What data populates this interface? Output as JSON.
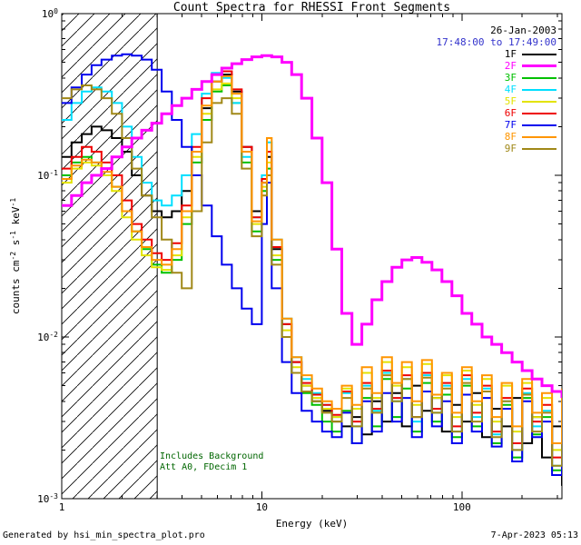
{
  "header": {
    "date": "26-Jan-2003",
    "time_range": "17:48:00 to 17:49:00",
    "date_color": "#000000",
    "time_color": "#3333cc"
  },
  "annotations": {
    "line1": "Includes Background",
    "line2": "Att A0, FDecim 1",
    "color": "#006600"
  },
  "footer": {
    "left": "Generated by hsi_min_spectra_plot.pro",
    "right": "7-Apr-2023 05:13"
  },
  "chart_data": {
    "type": "line",
    "title": "Count Spectra for RHESSI Front Segments",
    "xlabel": "Energy (keV)",
    "ylabel": "counts cm^-2 s^-1 keV^-1",
    "ylabel_parts": [
      {
        "t": "counts cm"
      },
      {
        "t": "-2",
        "sup": true
      },
      {
        "t": " s"
      },
      {
        "t": "-1",
        "sup": true
      },
      {
        "t": " keV"
      },
      {
        "t": "-1",
        "sup": true
      }
    ],
    "xscale": "log",
    "yscale": "log",
    "xlim": [
      1,
      316
    ],
    "ylim": [
      0.001,
      1
    ],
    "x_ticks": [
      {
        "value": 1,
        "label": "1"
      },
      {
        "value": 10,
        "label": "10"
      },
      {
        "value": 100,
        "label": "100"
      }
    ],
    "y_ticks": [
      {
        "value": 1,
        "base": "10",
        "exp": "0"
      },
      {
        "value": 0.1,
        "base": "10",
        "exp": "-1"
      },
      {
        "value": 0.01,
        "base": "10",
        "exp": "-2"
      },
      {
        "value": 0.001,
        "base": "10",
        "exp": "-3"
      }
    ],
    "hatch_region": {
      "x_min": 1,
      "x_max": 3.0
    },
    "legend_position": "top-right",
    "x": [
      1.0,
      1.12,
      1.26,
      1.41,
      1.58,
      1.78,
      2.0,
      2.24,
      2.51,
      2.82,
      3.16,
      3.55,
      3.98,
      4.47,
      5.01,
      5.62,
      6.31,
      7.08,
      7.94,
      8.91,
      10.0,
      10.6,
      11.2,
      12.6,
      14.1,
      15.8,
      17.8,
      20.0,
      22.4,
      25.1,
      28.2,
      31.6,
      35.5,
      39.8,
      44.7,
      50.1,
      56.2,
      63.1,
      70.8,
      79.4,
      89.1,
      100,
      112,
      126,
      141,
      158,
      178,
      200,
      224,
      251,
      282,
      316
    ],
    "series": [
      {
        "name": "1F",
        "color": "#000000",
        "width": 2,
        "zorder": 1,
        "values": [
          0.13,
          0.16,
          0.18,
          0.2,
          0.19,
          0.17,
          0.14,
          0.1,
          0.075,
          0.06,
          0.055,
          0.06,
          0.08,
          0.14,
          0.26,
          0.38,
          0.42,
          0.33,
          0.15,
          0.06,
          0.09,
          0.13,
          0.035,
          0.012,
          0.007,
          0.005,
          0.004,
          0.0035,
          0.003,
          0.0028,
          0.0032,
          0.0025,
          0.004,
          0.003,
          0.0045,
          0.0028,
          0.005,
          0.0035,
          0.0042,
          0.0026,
          0.0038,
          0.003,
          0.0045,
          0.0024,
          0.0036,
          0.0028,
          0.0042,
          0.0022,
          0.0032,
          0.0018,
          0.0028,
          0.0012
        ]
      },
      {
        "name": "2F",
        "color": "#ff00ff",
        "width": 3,
        "zorder": 9,
        "values": [
          0.065,
          0.075,
          0.09,
          0.1,
          0.11,
          0.13,
          0.15,
          0.17,
          0.19,
          0.21,
          0.24,
          0.27,
          0.3,
          0.34,
          0.38,
          0.42,
          0.46,
          0.49,
          0.52,
          0.54,
          0.55,
          0.55,
          0.54,
          0.5,
          0.42,
          0.3,
          0.17,
          0.09,
          0.035,
          0.014,
          0.009,
          0.012,
          0.017,
          0.022,
          0.027,
          0.03,
          0.031,
          0.029,
          0.026,
          0.022,
          0.018,
          0.014,
          0.012,
          0.01,
          0.009,
          0.008,
          0.007,
          0.0062,
          0.0055,
          0.005,
          0.0046,
          0.0042
        ]
      },
      {
        "name": "3F",
        "color": "#00c000",
        "width": 2,
        "zorder": 2,
        "values": [
          0.1,
          0.12,
          0.13,
          0.12,
          0.1,
          0.085,
          0.06,
          0.045,
          0.035,
          0.028,
          0.025,
          0.03,
          0.05,
          0.12,
          0.22,
          0.33,
          0.36,
          0.28,
          0.12,
          0.045,
          0.08,
          0.11,
          0.03,
          0.01,
          0.006,
          0.0045,
          0.0038,
          0.003,
          0.0026,
          0.0035,
          0.0022,
          0.0042,
          0.0028,
          0.0055,
          0.0032,
          0.0048,
          0.0026,
          0.0052,
          0.003,
          0.0044,
          0.0024,
          0.005,
          0.0028,
          0.0046,
          0.0022,
          0.0038,
          0.0018,
          0.0042,
          0.0025,
          0.0032,
          0.0015,
          0.0022
        ]
      },
      {
        "name": "4F",
        "color": "#00dfff",
        "width": 2,
        "zorder": 3,
        "values": [
          0.22,
          0.28,
          0.33,
          0.35,
          0.33,
          0.28,
          0.2,
          0.13,
          0.09,
          0.07,
          0.065,
          0.075,
          0.1,
          0.18,
          0.32,
          0.43,
          0.4,
          0.28,
          0.13,
          0.055,
          0.1,
          0.16,
          0.04,
          0.013,
          0.0075,
          0.0055,
          0.0045,
          0.0038,
          0.0032,
          0.0045,
          0.0028,
          0.005,
          0.0035,
          0.006,
          0.004,
          0.0055,
          0.003,
          0.0058,
          0.0034,
          0.005,
          0.0026,
          0.0055,
          0.0032,
          0.0048,
          0.0025,
          0.004,
          0.002,
          0.0045,
          0.0028,
          0.0035,
          0.0016,
          0.0024
        ]
      },
      {
        "name": "5F",
        "color": "#e3e300",
        "width": 2,
        "zorder": 4,
        "values": [
          0.09,
          0.11,
          0.12,
          0.115,
          0.1,
          0.08,
          0.055,
          0.04,
          0.032,
          0.027,
          0.026,
          0.032,
          0.055,
          0.13,
          0.24,
          0.34,
          0.37,
          0.3,
          0.14,
          0.05,
          0.085,
          0.12,
          0.032,
          0.011,
          0.0065,
          0.005,
          0.0042,
          0.0036,
          0.0032,
          0.0048,
          0.0036,
          0.006,
          0.0042,
          0.007,
          0.005,
          0.0065,
          0.0038,
          0.0068,
          0.0042,
          0.0058,
          0.0032,
          0.0062,
          0.0038,
          0.0055,
          0.003,
          0.005,
          0.0026,
          0.0052,
          0.0032,
          0.0042,
          0.002,
          0.003
        ]
      },
      {
        "name": "6F",
        "color": "#ee0000",
        "width": 2,
        "zorder": 5,
        "values": [
          0.11,
          0.13,
          0.15,
          0.14,
          0.12,
          0.1,
          0.07,
          0.05,
          0.04,
          0.033,
          0.03,
          0.038,
          0.065,
          0.15,
          0.3,
          0.42,
          0.44,
          0.34,
          0.15,
          0.055,
          0.095,
          0.14,
          0.036,
          0.012,
          0.007,
          0.0052,
          0.0044,
          0.0038,
          0.0033,
          0.0046,
          0.003,
          0.0052,
          0.0036,
          0.0062,
          0.0042,
          0.0058,
          0.0032,
          0.006,
          0.0036,
          0.0052,
          0.0028,
          0.0058,
          0.0034,
          0.005,
          0.0026,
          0.0042,
          0.0022,
          0.0048,
          0.003,
          0.0038,
          0.0018,
          0.0026
        ]
      },
      {
        "name": "7F",
        "color": "#0000ee",
        "width": 2,
        "zorder": 6,
        "values": [
          0.28,
          0.35,
          0.42,
          0.48,
          0.52,
          0.55,
          0.56,
          0.55,
          0.52,
          0.45,
          0.33,
          0.22,
          0.15,
          0.1,
          0.065,
          0.042,
          0.028,
          0.02,
          0.015,
          0.012,
          0.05,
          0.09,
          0.02,
          0.007,
          0.0045,
          0.0035,
          0.003,
          0.0026,
          0.0024,
          0.0034,
          0.0022,
          0.004,
          0.0026,
          0.0045,
          0.003,
          0.0042,
          0.0024,
          0.0046,
          0.0028,
          0.004,
          0.0022,
          0.0044,
          0.0026,
          0.0042,
          0.0021,
          0.0036,
          0.0017,
          0.004,
          0.0024,
          0.003,
          0.0014,
          0.002
        ]
      },
      {
        "name": "8F",
        "color": "#ff9500",
        "width": 2,
        "zorder": 8,
        "values": [
          0.095,
          0.115,
          0.125,
          0.12,
          0.105,
          0.085,
          0.06,
          0.045,
          0.036,
          0.03,
          0.028,
          0.035,
          0.06,
          0.14,
          0.27,
          0.38,
          0.41,
          0.32,
          0.14,
          0.052,
          0.09,
          0.17,
          0.04,
          0.013,
          0.0075,
          0.0058,
          0.0048,
          0.004,
          0.0036,
          0.005,
          0.0038,
          0.0065,
          0.0045,
          0.0075,
          0.0052,
          0.007,
          0.004,
          0.0072,
          0.0044,
          0.006,
          0.0034,
          0.0065,
          0.004,
          0.0058,
          0.0032,
          0.0052,
          0.0028,
          0.0055,
          0.0034,
          0.0045,
          0.0022,
          0.0048
        ]
      },
      {
        "name": "9F",
        "color": "#a08818",
        "width": 2,
        "zorder": 7,
        "values": [
          0.3,
          0.34,
          0.36,
          0.34,
          0.3,
          0.24,
          0.17,
          0.11,
          0.075,
          0.055,
          0.04,
          0.025,
          0.02,
          0.06,
          0.16,
          0.28,
          0.3,
          0.24,
          0.11,
          0.042,
          0.075,
          0.1,
          0.028,
          0.01,
          0.006,
          0.0046,
          0.004,
          0.0034,
          0.003,
          0.0042,
          0.0028,
          0.0048,
          0.0034,
          0.0058,
          0.004,
          0.0055,
          0.0032,
          0.0056,
          0.0034,
          0.0048,
          0.0026,
          0.0052,
          0.003,
          0.0046,
          0.0024,
          0.004,
          0.002,
          0.0044,
          0.0026,
          0.0034,
          0.0016,
          0.0024
        ]
      }
    ]
  }
}
